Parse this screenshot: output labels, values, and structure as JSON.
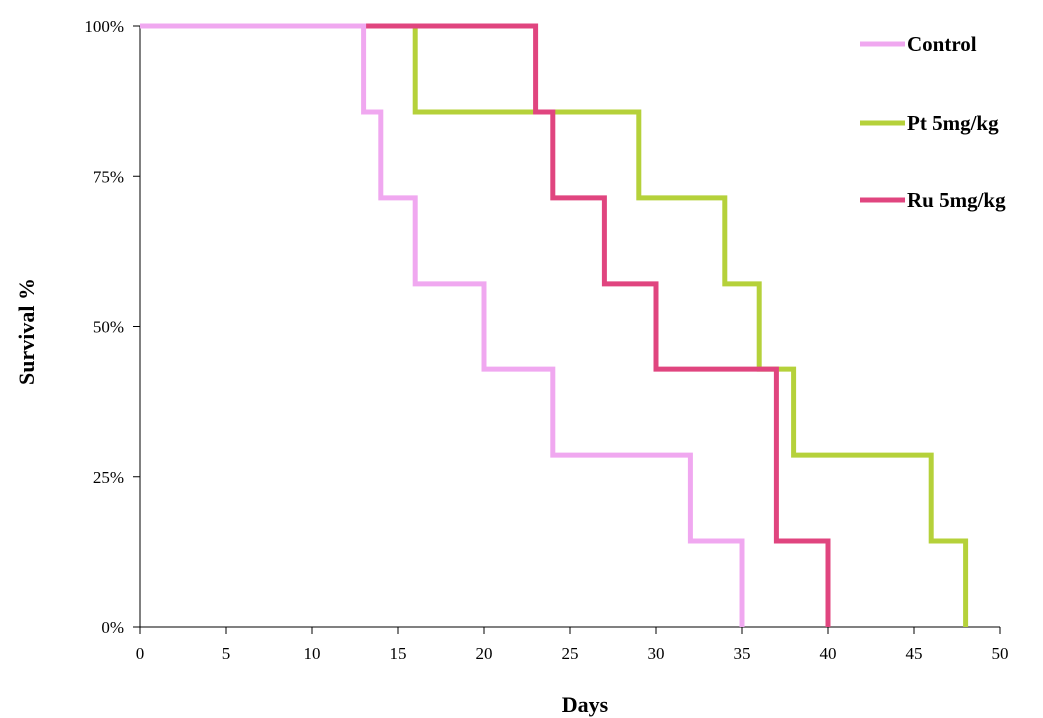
{
  "chart_data": {
    "type": "line",
    "step": true,
    "title": "",
    "xlabel": "Days",
    "ylabel": "Survival %",
    "xlim": [
      0,
      50
    ],
    "ylim": [
      0,
      100
    ],
    "x_ticks": [
      0,
      5,
      10,
      15,
      20,
      25,
      30,
      35,
      40,
      45,
      50
    ],
    "x_tick_labels": [
      "0",
      "5",
      "10",
      "15",
      "20",
      "25",
      "30",
      "35",
      "40",
      "45",
      "50"
    ],
    "y_ticks": [
      0,
      25,
      50,
      75,
      100
    ],
    "y_tick_labels": [
      "0%",
      "25%",
      "50%",
      "75%",
      "100%"
    ],
    "grid": false,
    "legend_position": "top-right",
    "series": [
      {
        "name": "Control",
        "color": "#f0a8f0",
        "steps": [
          {
            "x": 0,
            "y": 100
          },
          {
            "x": 13,
            "y": 85.7
          },
          {
            "x": 14,
            "y": 71.4
          },
          {
            "x": 16,
            "y": 57.1
          },
          {
            "x": 20,
            "y": 42.9
          },
          {
            "x": 24,
            "y": 28.6
          },
          {
            "x": 32,
            "y": 14.3
          },
          {
            "x": 35,
            "y": 0
          }
        ]
      },
      {
        "name": "Pt 5mg/kg",
        "color": "#b5d13a",
        "steps": [
          {
            "x": 0,
            "y": 100
          },
          {
            "x": 16,
            "y": 85.7
          },
          {
            "x": 29,
            "y": 71.4
          },
          {
            "x": 34,
            "y": 57.1
          },
          {
            "x": 36,
            "y": 42.9
          },
          {
            "x": 38,
            "y": 28.6
          },
          {
            "x": 46,
            "y": 14.3
          },
          {
            "x": 48,
            "y": 0
          }
        ]
      },
      {
        "name": "Ru 5mg/kg",
        "color": "#e0457f",
        "steps": [
          {
            "x": 0,
            "y": 100
          },
          {
            "x": 23,
            "y": 85.7
          },
          {
            "x": 24,
            "y": 71.4
          },
          {
            "x": 27,
            "y": 57.1
          },
          {
            "x": 30,
            "y": 42.9
          },
          {
            "x": 37,
            "y": 14.3
          },
          {
            "x": 40,
            "y": 0
          }
        ]
      }
    ]
  }
}
